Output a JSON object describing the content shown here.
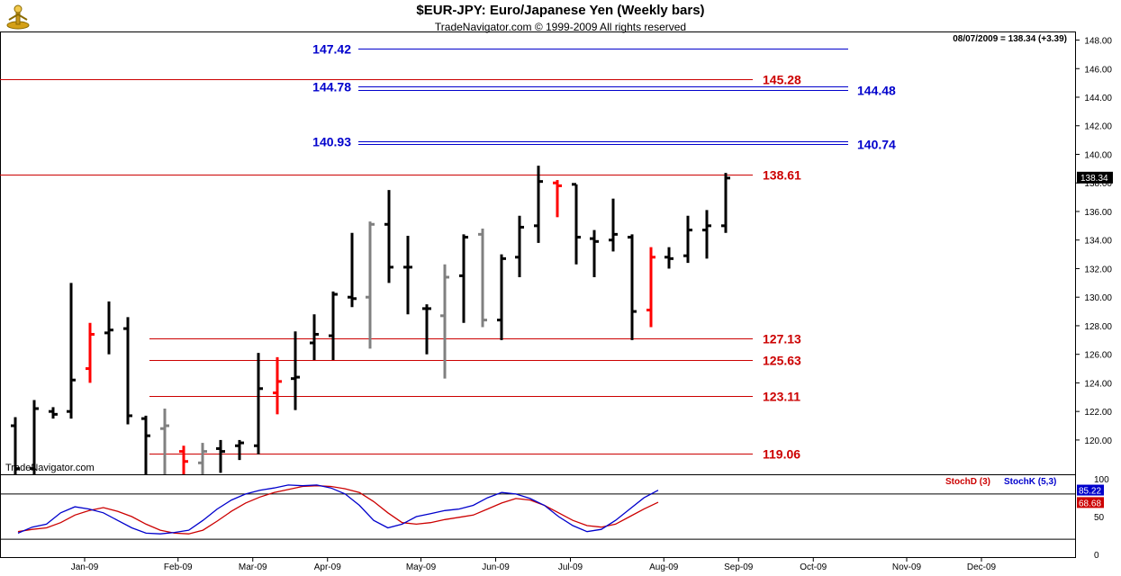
{
  "header": {
    "title": "$EUR-JPY:  Euro/Japanese Yen  (Weekly bars)",
    "copyright": "TradeNavigator.com © 1999-2009 All rights reserved",
    "last_info": "08/07/2009 = 138.34 (+3.39)",
    "watermark": "TradeNavigator.com"
  },
  "colors": {
    "up_bar": "#000000",
    "down_bar": "#ff0000",
    "inside_bar": "#808080",
    "resistance_line": "#cc0000",
    "target_line": "#0000cc",
    "stoch_d": "#cc0000",
    "stoch_k": "#0000cc"
  },
  "chart_data": [
    {
      "type": "ohlc",
      "title": "$EUR-JPY:  Euro/Japanese Yen  (Weekly bars)",
      "ylim": [
        117.6,
        148.6
      ],
      "y_ticks": [
        "148.00",
        "146.00",
        "144.00",
        "142.00",
        "140.00",
        "138.00",
        "136.00",
        "134.00",
        "132.00",
        "130.00",
        "128.00",
        "126.00",
        "124.00",
        "122.00",
        "120.00"
      ],
      "y_tick_values": [
        148,
        146,
        144,
        142,
        140,
        138,
        136,
        134,
        132,
        130,
        128,
        126,
        124,
        122,
        120
      ],
      "x_tick_labels": [
        "Jan-09",
        "Feb-09",
        "Mar-09",
        "Apr-09",
        "May-09",
        "Jun-09",
        "Jul-09",
        "Aug-09",
        "Sep-09",
        "Oct-09",
        "Nov-09",
        "Dec-09"
      ],
      "x_tick_weeks": [
        4,
        9,
        13,
        17,
        22,
        26,
        30,
        35,
        39,
        43,
        48,
        52
      ],
      "last_value": "138.34",
      "bars": [
        {
          "w": 0,
          "o": 121,
          "h": 121.6,
          "l": 117.5,
          "c": 118,
          "k": "up"
        },
        {
          "w": 1,
          "o": 118,
          "h": 122.8,
          "l": 117.5,
          "c": 122.2,
          "k": "up"
        },
        {
          "w": 2,
          "o": 122,
          "h": 122.3,
          "l": 121.5,
          "c": 121.8,
          "k": "up"
        },
        {
          "w": 3,
          "o": 122,
          "h": 131,
          "l": 121.5,
          "c": 124.2,
          "k": "up"
        },
        {
          "w": 4,
          "o": 125,
          "h": 128.2,
          "l": 124,
          "c": 127.4,
          "k": "down"
        },
        {
          "w": 5,
          "o": 127.5,
          "h": 129.7,
          "l": 126,
          "c": 127.7,
          "k": "up"
        },
        {
          "w": 6,
          "o": 127.8,
          "h": 128.6,
          "l": 121.1,
          "c": 121.7,
          "k": "up"
        },
        {
          "w": 7,
          "o": 121.5,
          "h": 121.7,
          "l": 117.5,
          "c": 120.3,
          "k": "up"
        },
        {
          "w": 8,
          "o": 120.8,
          "h": 122.2,
          "l": 117.5,
          "c": 121,
          "k": "inside"
        },
        {
          "w": 9,
          "o": 119.2,
          "h": 119.6,
          "l": 117.5,
          "c": 118.5,
          "k": "down"
        },
        {
          "w": 10,
          "o": 118.4,
          "h": 119.8,
          "l": 117.5,
          "c": 119.2,
          "k": "inside"
        },
        {
          "w": 11,
          "o": 119.4,
          "h": 120,
          "l": 117.7,
          "c": 119.2,
          "k": "up"
        },
        {
          "w": 12,
          "o": 119.6,
          "h": 120,
          "l": 118.6,
          "c": 119.8,
          "k": "up"
        },
        {
          "w": 13,
          "o": 119.6,
          "h": 126.1,
          "l": 119,
          "c": 123.6,
          "k": "up"
        },
        {
          "w": 14,
          "o": 123.3,
          "h": 125.8,
          "l": 121.8,
          "c": 124.1,
          "k": "down"
        },
        {
          "w": 15,
          "o": 124.3,
          "h": 127.6,
          "l": 122.1,
          "c": 124.4,
          "k": "up"
        },
        {
          "w": 16,
          "o": 126.8,
          "h": 128.8,
          "l": 125.6,
          "c": 127.4,
          "k": "up"
        },
        {
          "w": 17,
          "o": 127.3,
          "h": 130.4,
          "l": 125.6,
          "c": 130.2,
          "k": "up"
        },
        {
          "w": 18,
          "o": 130,
          "h": 134.5,
          "l": 129.3,
          "c": 129.9,
          "k": "up"
        },
        {
          "w": 19,
          "o": 130,
          "h": 135.3,
          "l": 126.4,
          "c": 135.1,
          "k": "inside"
        },
        {
          "w": 20,
          "o": 135.1,
          "h": 137.5,
          "l": 131,
          "c": 132.1,
          "k": "up"
        },
        {
          "w": 21,
          "o": 132.1,
          "h": 134.3,
          "l": 128.8,
          "c": 132.1,
          "k": "up"
        },
        {
          "w": 22,
          "o": 129.2,
          "h": 129.5,
          "l": 126,
          "c": 129.2,
          "k": "up"
        },
        {
          "w": 23,
          "o": 128.7,
          "h": 132.3,
          "l": 124.3,
          "c": 131.4,
          "k": "inside"
        },
        {
          "w": 24,
          "o": 131.5,
          "h": 134.4,
          "l": 128.2,
          "c": 134.2,
          "k": "up"
        },
        {
          "w": 25,
          "o": 134.4,
          "h": 134.8,
          "l": 127.9,
          "c": 128.4,
          "k": "inside"
        },
        {
          "w": 26,
          "o": 128.4,
          "h": 133,
          "l": 127,
          "c": 132.7,
          "k": "up"
        },
        {
          "w": 27,
          "o": 132.8,
          "h": 135.7,
          "l": 131.4,
          "c": 134.9,
          "k": "up"
        },
        {
          "w": 28,
          "o": 135,
          "h": 139.2,
          "l": 133.8,
          "c": 138.1,
          "k": "up"
        },
        {
          "w": 29,
          "o": 138,
          "h": 138.2,
          "l": 135.6,
          "c": 137.8,
          "k": "down"
        },
        {
          "w": 30,
          "o": 137.9,
          "h": 137.9,
          "l": 132.3,
          "c": 134.2,
          "k": "up"
        },
        {
          "w": 31,
          "o": 134.1,
          "h": 134.7,
          "l": 131.4,
          "c": 133.9,
          "k": "up"
        },
        {
          "w": 32,
          "o": 134,
          "h": 136.9,
          "l": 133.2,
          "c": 134.4,
          "k": "up"
        },
        {
          "w": 33,
          "o": 134.2,
          "h": 134.4,
          "l": 127,
          "c": 129,
          "k": "up"
        },
        {
          "w": 34,
          "o": 129.1,
          "h": 133.5,
          "l": 127.9,
          "c": 132.8,
          "k": "down"
        },
        {
          "w": 35,
          "o": 132.8,
          "h": 133.5,
          "l": 132,
          "c": 132.7,
          "k": "up"
        },
        {
          "w": 36,
          "o": 132.9,
          "h": 135.7,
          "l": 132.4,
          "c": 134.7,
          "k": "up"
        },
        {
          "w": 37,
          "o": 134.7,
          "h": 136.1,
          "l": 132.7,
          "c": 135,
          "k": "up"
        },
        {
          "w": 38,
          "o": 135,
          "h": 138.7,
          "l": 134.5,
          "c": 138.34,
          "k": "up"
        }
      ],
      "levels": [
        {
          "value": 147.42,
          "label": "147.42",
          "color": "blue",
          "side": "left"
        },
        {
          "value": 145.28,
          "label": "145.28",
          "color": "red",
          "side": "right"
        },
        {
          "value": 144.78,
          "label": "144.78",
          "color": "blue",
          "side": "left"
        },
        {
          "value": 144.48,
          "label": "144.48",
          "color": "blue",
          "side": "far"
        },
        {
          "value": 140.93,
          "label": "140.93",
          "color": "blue",
          "side": "left"
        },
        {
          "value": 140.74,
          "label": "140.74",
          "color": "blue",
          "side": "far"
        },
        {
          "value": 138.61,
          "label": "138.61",
          "color": "red",
          "side": "right"
        },
        {
          "value": 127.13,
          "label": "127.13",
          "color": "red",
          "side": "right"
        },
        {
          "value": 125.63,
          "label": "125.63",
          "color": "red",
          "side": "right"
        },
        {
          "value": 123.11,
          "label": "123.11",
          "color": "red",
          "side": "right"
        },
        {
          "value": 119.06,
          "label": "119.06",
          "color": "red",
          "side": "right"
        }
      ]
    },
    {
      "type": "line",
      "title": "",
      "legend": [
        "StochD (3)",
        "StochK (5,3)"
      ],
      "ylim": [
        -5,
        105
      ],
      "y_ticks": [
        "100",
        "50",
        "0"
      ],
      "y_tick_values": [
        100,
        50,
        0
      ],
      "ref_lines": [
        80,
        20
      ],
      "last_values": {
        "d": "68.68",
        "k": "85.22"
      },
      "series": [
        {
          "name": "StochD (3)",
          "key": "d",
          "values": [
            30,
            33,
            35,
            42,
            52,
            58,
            62,
            57,
            50,
            40,
            32,
            28,
            27,
            32,
            44,
            57,
            68,
            76,
            82,
            86,
            90,
            91,
            90,
            87,
            82,
            70,
            55,
            42,
            40,
            42,
            46,
            49,
            52,
            60,
            68,
            74,
            72,
            65,
            55,
            45,
            38,
            36,
            40,
            50,
            60,
            69
          ]
        },
        {
          "name": "StochK (5,3)",
          "key": "k",
          "values": [
            28,
            36,
            40,
            55,
            63,
            60,
            55,
            45,
            35,
            28,
            27,
            29,
            32,
            45,
            60,
            72,
            80,
            85,
            88,
            92,
            91,
            92,
            88,
            80,
            65,
            45,
            35,
            40,
            50,
            54,
            58,
            60,
            65,
            75,
            82,
            80,
            74,
            65,
            50,
            38,
            30,
            33,
            45,
            60,
            75,
            85
          ]
        }
      ]
    }
  ]
}
